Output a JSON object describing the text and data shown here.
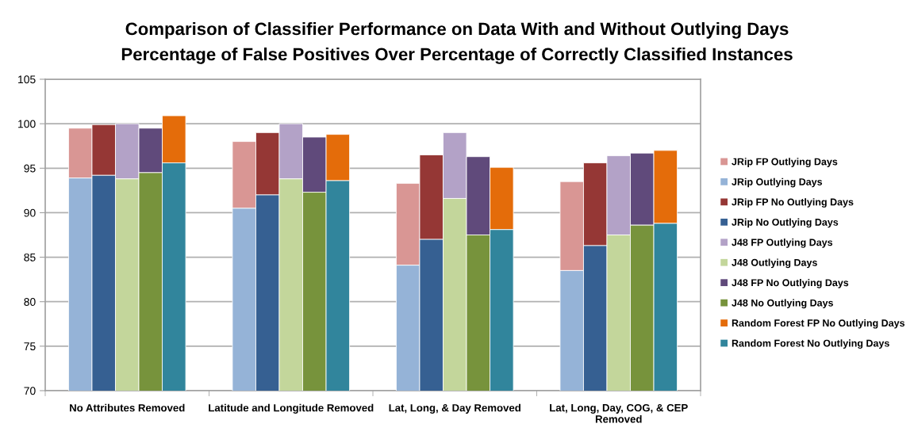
{
  "chart_data": {
    "type": "bar",
    "title": "Comparison of Classifier Performance on Data With and Without Outlying Days",
    "subtitle": "Percentage of False Positives Over Percentage of Correctly Classified Instances",
    "categories": [
      "No Attributes Removed",
      "Latitude and Longitude Removed",
      "Lat, Long, & Day Removed",
      "Lat, Long, Day, COG, & CEP\nRemoved"
    ],
    "series": [
      {
        "name": "JRip FP Outlying Days",
        "color": "#d99694",
        "values": [
          5.6,
          7.5,
          9.2,
          10.0
        ],
        "base": [
          93.9,
          90.5,
          84.1,
          83.5
        ]
      },
      {
        "name": "JRip Outlying Days",
        "color": "#95b3d7",
        "values": [
          93.9,
          90.5,
          84.1,
          83.5
        ]
      },
      {
        "name": "JRip FP No Outlying Days",
        "color": "#953735",
        "values": [
          5.7,
          7.0,
          9.5,
          9.3
        ],
        "base": [
          94.2,
          92.0,
          87.0,
          86.3
        ]
      },
      {
        "name": "JRip No Outlying Days",
        "color": "#366092",
        "values": [
          94.2,
          92.0,
          87.0,
          86.3
        ]
      },
      {
        "name": "J48 FP Outlying Days",
        "color": "#b3a2c7",
        "values": [
          6.2,
          6.2,
          7.4,
          8.9
        ],
        "base": [
          93.8,
          93.8,
          91.6,
          87.5
        ]
      },
      {
        "name": "J48 Outlying Days",
        "color": "#c3d69b",
        "values": [
          93.8,
          93.8,
          91.6,
          87.5
        ]
      },
      {
        "name": "J48 FP No Outlying Days",
        "color": "#604a7b",
        "values": [
          5.0,
          6.2,
          8.8,
          8.1
        ],
        "base": [
          94.5,
          92.3,
          87.5,
          88.6
        ]
      },
      {
        "name": "J48 No Outlying Days",
        "color": "#77933c",
        "values": [
          94.5,
          92.3,
          87.5,
          88.6
        ]
      },
      {
        "name": "Random Forest FP No Outlying Days",
        "color": "#e46c0a",
        "values": [
          5.3,
          5.2,
          7.0,
          8.2
        ],
        "base": [
          95.6,
          93.6,
          88.1,
          88.8
        ]
      },
      {
        "name": "Random Forest No Outlying Days",
        "color": "#31859c",
        "values": [
          95.6,
          93.6,
          88.1,
          88.8
        ]
      }
    ],
    "ylim": [
      70,
      105
    ],
    "yticks": [
      70,
      75,
      80,
      85,
      90,
      95,
      100,
      105
    ],
    "grid": "y",
    "legend": "right"
  }
}
